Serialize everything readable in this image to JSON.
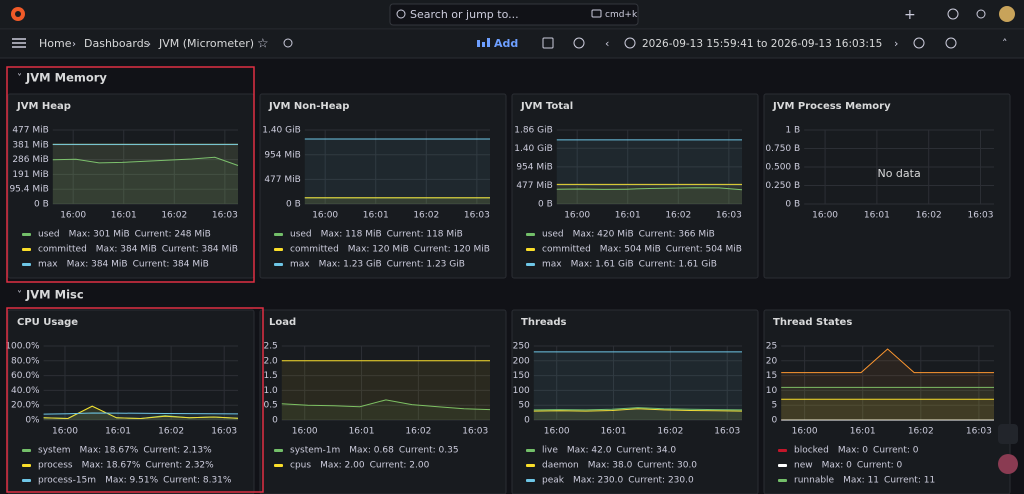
{
  "header": {
    "search": "Search or jump to...",
    "shortcut": "cmd+k"
  },
  "toolbar": {
    "breadcrumb": [
      "Home",
      "Dashboards",
      "JVM (Micrometer)"
    ],
    "add": "Add",
    "time_range": "2026-09-13 15:59:41 to 2026-09-13 16:03:15"
  },
  "rows": [
    {
      "title": "JVM Memory",
      "panels": [
        {
          "title": "JVM Heap",
          "type": "line",
          "ylim": [
            0,
            477
          ],
          "yticks": [
            {
              "value": 477,
              "label": "477 MiB"
            },
            {
              "value": 381,
              "label": "381 MiB"
            },
            {
              "value": 286,
              "label": "286 MiB"
            },
            {
              "value": 191,
              "label": "191 MiB"
            },
            {
              "value": 95.4,
              "label": "95.4 MiB"
            },
            {
              "value": 0,
              "label": "0 B"
            }
          ],
          "xticks": [
            "16:00",
            "16:01",
            "16:02",
            "16:03"
          ],
          "series": [
            {
              "name": "used",
              "color": "#73bf69",
              "max": "Max: 301 MiB",
              "current": "Current: 248 MiB",
              "values": [
                285,
                288,
                265,
                268,
                275,
                283,
                290,
                301,
                248
              ]
            },
            {
              "name": "committed",
              "color": "#fade2a",
              "max": "Max: 384 MiB",
              "current": "Current: 384 MiB",
              "values": [
                384,
                384,
                384,
                384,
                384,
                384,
                384,
                384,
                384
              ]
            },
            {
              "name": "max",
              "color": "#6ec6e6",
              "max": "Max: 384 MiB",
              "current": "Current: 384 MiB",
              "values": [
                384,
                384,
                384,
                384,
                384,
                384,
                384,
                384,
                384
              ]
            }
          ]
        },
        {
          "title": "JVM Non-Heap",
          "type": "line",
          "ylim": [
            0,
            1433.6
          ],
          "yticks": [
            {
              "value": 1433.6,
              "label": "1.40 GiB"
            },
            {
              "value": 954,
              "label": "954 MiB"
            },
            {
              "value": 477,
              "label": "477 MiB"
            },
            {
              "value": 0,
              "label": "0 B"
            }
          ],
          "xticks": [
            "16:00",
            "16:01",
            "16:02",
            "16:03"
          ],
          "series": [
            {
              "name": "used",
              "color": "#73bf69",
              "max": "Max: 118 MiB",
              "current": "Current: 118 MiB",
              "values": [
                118,
                118,
                118,
                118,
                118,
                118,
                118,
                118,
                118
              ]
            },
            {
              "name": "committed",
              "color": "#fade2a",
              "max": "Max: 120 MiB",
              "current": "Current: 120 MiB",
              "values": [
                120,
                120,
                120,
                120,
                120,
                120,
                120,
                120,
                120
              ]
            },
            {
              "name": "max",
              "color": "#6ec6e6",
              "max": "Max: 1.23 GiB",
              "current": "Current: 1.23 GiB",
              "values": [
                1259.5,
                1259.5,
                1259.5,
                1259.5,
                1259.5,
                1259.5,
                1259.5,
                1259.5,
                1259.5
              ]
            }
          ]
        },
        {
          "title": "JVM Total",
          "type": "line",
          "ylim": [
            0,
            1904.6
          ],
          "yticks": [
            {
              "value": 1904.6,
              "label": "1.86 GiB"
            },
            {
              "value": 1433.6,
              "label": "1.40 GiB"
            },
            {
              "value": 954,
              "label": "954 MiB"
            },
            {
              "value": 477,
              "label": "477 MiB"
            },
            {
              "value": 0,
              "label": "0 B"
            }
          ],
          "xticks": [
            "16:00",
            "16:01",
            "16:02",
            "16:03"
          ],
          "series": [
            {
              "name": "used",
              "color": "#73bf69",
              "max": "Max: 420 MiB",
              "current": "Current: 366 MiB",
              "values": [
                380,
                385,
                375,
                380,
                400,
                410,
                420,
                415,
                366
              ]
            },
            {
              "name": "committed",
              "color": "#fade2a",
              "max": "Max: 504 MiB",
              "current": "Current: 504 MiB",
              "values": [
                504,
                504,
                504,
                504,
                504,
                504,
                504,
                504,
                504
              ]
            },
            {
              "name": "max",
              "color": "#6ec6e6",
              "max": "Max: 1.61 GiB",
              "current": "Current: 1.61 GiB",
              "values": [
                1648.6,
                1648.6,
                1648.6,
                1648.6,
                1648.6,
                1648.6,
                1648.6,
                1648.6,
                1648.6
              ]
            }
          ]
        },
        {
          "title": "JVM Process Memory",
          "type": "line",
          "ylim": [
            0,
            1
          ],
          "yticks": [
            {
              "value": 1,
              "label": "1 B"
            },
            {
              "value": 0.75,
              "label": "0.750 B"
            },
            {
              "value": 0.5,
              "label": "0.500 B"
            },
            {
              "value": 0.25,
              "label": "0.250 B"
            },
            {
              "value": 0,
              "label": "0 B"
            }
          ],
          "xticks": [
            "16:00",
            "16:01",
            "16:02",
            "16:03"
          ],
          "no_data": "No data",
          "series": []
        }
      ]
    },
    {
      "title": "JVM Misc",
      "panels": [
        {
          "title": "CPU Usage",
          "type": "line",
          "ylim": [
            0,
            100
          ],
          "yticks": [
            {
              "value": 100,
              "label": "100.0%"
            },
            {
              "value": 80,
              "label": "80.0%"
            },
            {
              "value": 60,
              "label": "60.0%"
            },
            {
              "value": 40,
              "label": "40.0%"
            },
            {
              "value": 20,
              "label": "20.0%"
            },
            {
              "value": 0,
              "label": "0%"
            }
          ],
          "xticks": [
            "16:00",
            "16:01",
            "16:02",
            "16:03"
          ],
          "series": [
            {
              "name": "system",
              "color": "#73bf69",
              "max": "Max: 18.67%",
              "current": "Current: 2.13%",
              "values": [
                3,
                2,
                18.67,
                3,
                2,
                6,
                3,
                4,
                2.13
              ]
            },
            {
              "name": "process",
              "color": "#fade2a",
              "max": "Max: 18.67%",
              "current": "Current: 2.32%",
              "values": [
                3,
                2,
                18.67,
                3,
                2,
                5,
                3,
                4,
                2.32
              ]
            },
            {
              "name": "process-15m",
              "color": "#6ec6e6",
              "max": "Max: 9.51%",
              "current": "Current: 8.31%",
              "values": [
                8,
                8.5,
                9.51,
                9.3,
                9,
                8.8,
                8.6,
                8.4,
                8.31
              ]
            }
          ]
        },
        {
          "title": "Load",
          "type": "line",
          "ylim": [
            0,
            2.5
          ],
          "yticks": [
            2.5,
            {
              "value": 2,
              "label": "2.0"
            },
            1.5,
            {
              "value": 1,
              "label": "1.0"
            },
            0.5,
            0
          ],
          "xticks": [
            "16:00",
            "16:01",
            "16:02",
            "16:03"
          ],
          "series": [
            {
              "name": "system-1m",
              "color": "#73bf69",
              "max": "Max: 0.68",
              "current": "Current: 0.35",
              "values": [
                0.55,
                0.5,
                0.48,
                0.45,
                0.68,
                0.52,
                0.45,
                0.38,
                0.35
              ]
            },
            {
              "name": "cpus",
              "color": "#fade2a",
              "max": "Max: 2.00",
              "current": "Current: 2.00",
              "values": [
                2,
                2,
                2,
                2,
                2,
                2,
                2,
                2,
                2
              ]
            }
          ]
        },
        {
          "title": "Threads",
          "type": "line",
          "ylim": [
            0,
            250
          ],
          "yticks": [
            250,
            200,
            150,
            100,
            50,
            0
          ],
          "xticks": [
            "16:00",
            "16:01",
            "16:02",
            "16:03"
          ],
          "series": [
            {
              "name": "live",
              "color": "#73bf69",
              "max": "Max: 42.0",
              "current": "Current: 34.0",
              "values": [
                34,
                35,
                34,
                36,
                42,
                38,
                36,
                35,
                34
              ]
            },
            {
              "name": "daemon",
              "color": "#fade2a",
              "max": "Max: 38.0",
              "current": "Current: 30.0",
              "values": [
                30,
                31,
                30,
                32,
                38,
                34,
                32,
                31,
                30
              ]
            },
            {
              "name": "peak",
              "color": "#6ec6e6",
              "max": "Max: 230.0",
              "current": "Current: 230.0",
              "values": [
                230,
                230,
                230,
                230,
                230,
                230,
                230,
                230,
                230
              ]
            }
          ]
        },
        {
          "title": "Thread States",
          "type": "line",
          "ylim": [
            0,
            25
          ],
          "yticks": [
            25,
            20,
            15,
            10,
            5,
            0
          ],
          "xticks": [
            "16:00",
            "16:01",
            "16:02",
            "16:03"
          ],
          "series": [
            {
              "name": "blocked",
              "color": "#c4162a",
              "max": "Max: 0",
              "current": "Current: 0",
              "values": [
                0,
                0,
                0,
                0,
                0,
                0,
                0,
                0,
                0
              ]
            },
            {
              "name": "new",
              "color": "#ffffff",
              "max": "Max: 0",
              "current": "Current: 0",
              "values": [
                0,
                0,
                0,
                0,
                0,
                0,
                0,
                0,
                0
              ]
            },
            {
              "name": "runnable",
              "color": "#73bf69",
              "max": "Max: 11",
              "current": "Current: 11",
              "values": [
                11,
                11,
                11,
                11,
                11,
                11,
                11,
                11,
                11
              ]
            },
            {
              "color": "#ff9830",
              "values": [
                16,
                16,
                16,
                16,
                24,
                16,
                16,
                16,
                16
              ]
            },
            {
              "color": "#fade2a",
              "values": [
                7,
                7,
                7,
                7,
                7,
                7,
                7,
                7,
                7
              ]
            }
          ]
        }
      ]
    }
  ]
}
